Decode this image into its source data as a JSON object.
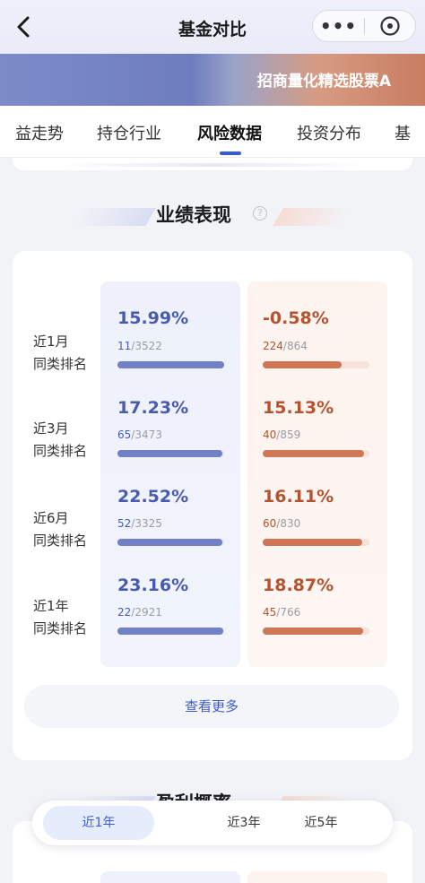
{
  "header": {
    "title": "基金对比",
    "more_label": "•••"
  },
  "banner": {
    "fund_name": "招商量化精选股票A"
  },
  "tabs": [
    {
      "label": "益走势"
    },
    {
      "label": "持仓行业"
    },
    {
      "label": "风险数据",
      "active": true
    },
    {
      "label": "投资分布"
    },
    {
      "label": "基"
    }
  ],
  "performance": {
    "title": "业绩表现",
    "help_label": "?",
    "rows": [
      {
        "period_label": "近1月",
        "rank_label": "同类排名",
        "fund_a": {
          "return": "15.99%",
          "rank": "11",
          "total": "/3522",
          "bar_fraction": 0.997
        },
        "fund_b": {
          "return": "-0.58%",
          "rank": "224",
          "total": "/864",
          "bar_fraction": 0.74
        }
      },
      {
        "period_label": "近3月",
        "rank_label": "同类排名",
        "fund_a": {
          "return": "17.23%",
          "rank": "65",
          "total": "/3473",
          "bar_fraction": 0.98
        },
        "fund_b": {
          "return": "15.13%",
          "rank": "40",
          "total": "/859",
          "bar_fraction": 0.95
        }
      },
      {
        "period_label": "近6月",
        "rank_label": "同类排名",
        "fund_a": {
          "return": "22.52%",
          "rank": "52",
          "total": "/3325",
          "bar_fraction": 0.98
        },
        "fund_b": {
          "return": "16.11%",
          "rank": "60",
          "total": "/830",
          "bar_fraction": 0.93
        }
      },
      {
        "period_label": "近1年",
        "rank_label": "同类排名",
        "fund_a": {
          "return": "23.16%",
          "rank": "22",
          "total": "/2921",
          "bar_fraction": 0.99
        },
        "fund_b": {
          "return": "18.87%",
          "rank": "45",
          "total": "/766",
          "bar_fraction": 0.94
        }
      }
    ],
    "more_button": "查看更多"
  },
  "next_section": {
    "title": "盈利概率"
  },
  "period_selector": {
    "options": [
      "近1年",
      "近3年",
      "近5年"
    ],
    "selected": "近1年"
  },
  "colors": {
    "fund_a_accent": "#4a5bab",
    "fund_b_accent": "#b3532f",
    "link": "#3a5bd9"
  }
}
